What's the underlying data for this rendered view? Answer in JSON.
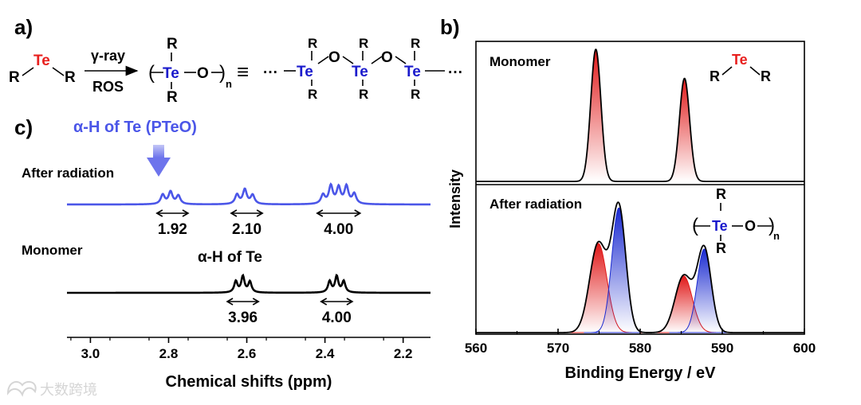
{
  "panel_labels": {
    "a": "a)",
    "b": "b)",
    "c": "c)"
  },
  "scheme": {
    "R": "R",
    "Te": "Te",
    "O": "O",
    "n": "n",
    "arrow_top": "γ-ray",
    "arrow_bottom": "ROS",
    "equiv": "≡",
    "ellipsis": "···",
    "dash": "—",
    "paren_left": "(",
    "paren_right": ")"
  },
  "colors": {
    "te_red": "#e8201e",
    "te_blue": "#1a1acc",
    "nmr_blue": "#4b56e8",
    "arrow_blue": "#8a90ef",
    "xps_red": "#e01818",
    "xps_blue": "#1a2ad0",
    "black": "#000000"
  },
  "watermark": {
    "icon": "bird-logo-icon",
    "text": "大数跨境"
  },
  "chart_data": [
    {
      "type": "line",
      "panel": "c",
      "title": "",
      "xlabel": "Chemical shifts (ppm)",
      "ylabel": "",
      "xlim": [
        3.06,
        2.13
      ],
      "xticks": [
        3.0,
        2.8,
        2.6,
        2.4,
        2.2
      ],
      "xtick_labels": [
        "3.0",
        "2.8",
        "2.6",
        "2.4",
        "2.2"
      ],
      "series": [
        {
          "name": "After radiation",
          "color": "#4b56e8",
          "baseline": 0,
          "peaks": [
            {
              "center": 2.815,
              "height": 0.42,
              "width": 0.006
            },
            {
              "center": 2.795,
              "height": 0.55,
              "width": 0.006
            },
            {
              "center": 2.775,
              "height": 0.38,
              "width": 0.006
            },
            {
              "center": 2.625,
              "height": 0.42,
              "width": 0.006
            },
            {
              "center": 2.605,
              "height": 0.65,
              "width": 0.006
            },
            {
              "center": 2.585,
              "height": 0.4,
              "width": 0.006
            },
            {
              "center": 2.405,
              "height": 0.4,
              "width": 0.006
            },
            {
              "center": 2.385,
              "height": 0.8,
              "width": 0.006
            },
            {
              "center": 2.365,
              "height": 0.72,
              "width": 0.006
            },
            {
              "center": 2.345,
              "height": 0.78,
              "width": 0.006
            },
            {
              "center": 2.325,
              "height": 0.45,
              "width": 0.006
            }
          ],
          "integrals": [
            {
              "from": 2.83,
              "to": 2.75,
              "label": "1.92"
            },
            {
              "from": 2.64,
              "to": 2.56,
              "label": "2.10"
            },
            {
              "from": 2.42,
              "to": 2.31,
              "label": "4.00"
            }
          ]
        },
        {
          "name": "Monomer",
          "color": "#000000",
          "baseline": 0,
          "peaks": [
            {
              "center": 2.628,
              "height": 0.5,
              "width": 0.005
            },
            {
              "center": 2.61,
              "height": 0.72,
              "width": 0.005
            },
            {
              "center": 2.592,
              "height": 0.48,
              "width": 0.005
            },
            {
              "center": 2.388,
              "height": 0.5,
              "width": 0.005
            },
            {
              "center": 2.37,
              "height": 0.72,
              "width": 0.005
            },
            {
              "center": 2.352,
              "height": 0.5,
              "width": 0.005
            }
          ],
          "integrals": [
            {
              "from": 2.65,
              "to": 2.57,
              "label": "3.96"
            },
            {
              "from": 2.41,
              "to": 2.33,
              "label": "4.00"
            }
          ]
        }
      ],
      "annotations": {
        "pteo": "α-H of Te (PTeO)",
        "after": "After radiation",
        "monomer": "Monomer",
        "alpha_te": "α-H of Te"
      }
    },
    {
      "type": "area",
      "panel": "b",
      "title": "",
      "xlabel": "Binding Energy / eV",
      "ylabel": "Intensity",
      "xlim": [
        560,
        600
      ],
      "xticks": [
        560,
        570,
        580,
        590,
        600
      ],
      "xtick_labels": [
        "560",
        "570",
        "580",
        "590",
        "600"
      ],
      "panels": [
        {
          "name": "Monomer",
          "label": "Monomer",
          "components": [
            {
              "center": 574.6,
              "sigma": 0.62,
              "height": 1.0,
              "color": "#e01818"
            },
            {
              "center": 585.4,
              "sigma": 0.62,
              "height": 0.78,
              "color": "#e01818"
            }
          ]
        },
        {
          "name": "After radiation",
          "label": "After radiation",
          "components": [
            {
              "center": 574.9,
              "sigma": 1.05,
              "height": 0.63,
              "color": "#e01818"
            },
            {
              "center": 577.4,
              "sigma": 0.85,
              "height": 0.88,
              "color": "#1a2ad0"
            },
            {
              "center": 585.3,
              "sigma": 1.05,
              "height": 0.4,
              "color": "#e01818"
            },
            {
              "center": 587.8,
              "sigma": 0.85,
              "height": 0.59,
              "color": "#1a2ad0"
            }
          ]
        }
      ]
    }
  ]
}
